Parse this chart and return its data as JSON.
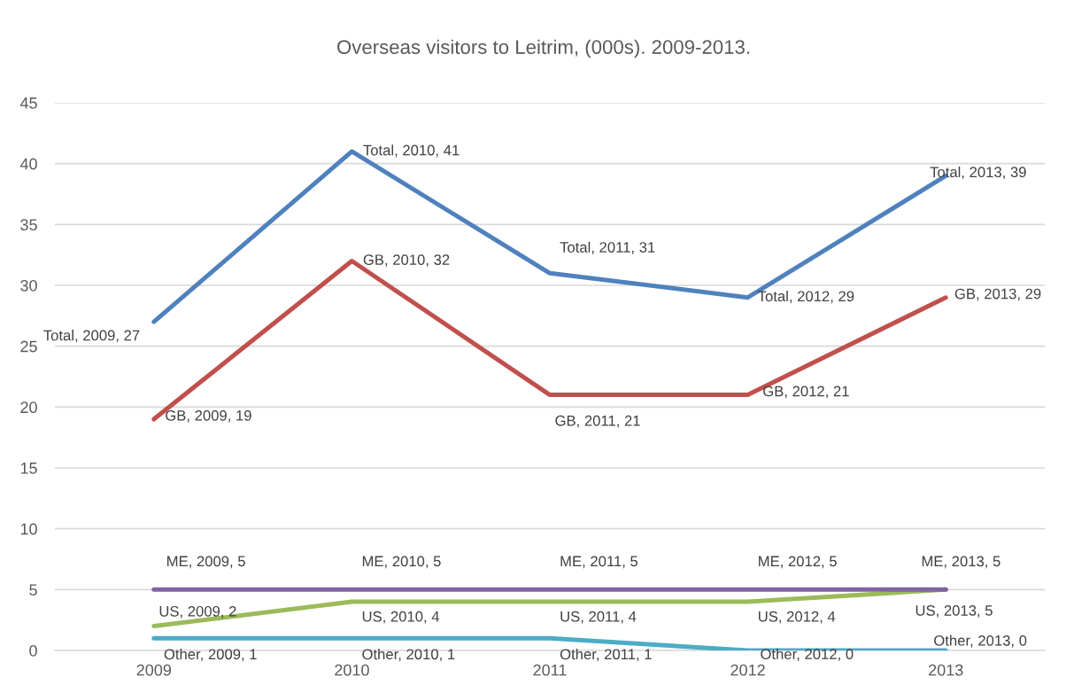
{
  "chart_data": {
    "type": "line",
    "title": "Overseas visitors to Leitrim, (000s). 2009-2013.",
    "categories": [
      "2009",
      "2010",
      "2011",
      "2012",
      "2013"
    ],
    "series": [
      {
        "color": "#4f81bd",
        "values": [
          27,
          41,
          31,
          29,
          39
        ],
        "value_labels": [
          "Total, 2009, 27",
          "Total, 2010, 41",
          "Total, 2011, 31",
          "Total, 2012, 29",
          "Total, 2013, 39"
        ]
      },
      {
        "color": "#c0504d",
        "values": [
          19,
          32,
          21,
          21,
          29
        ],
        "value_labels": [
          "GB, 2009, 19",
          "GB, 2010, 32",
          "GB, 2011, 21",
          "GB, 2012, 21",
          "GB, 2013, 29"
        ]
      },
      {
        "color": "#9bbb59",
        "values": [
          2,
          4,
          4,
          4,
          5
        ],
        "value_labels": [
          "US, 2009, 2",
          "US, 2010, 4",
          "US, 2011, 4",
          "US, 2012, 4",
          "US, 2013, 5"
        ]
      },
      {
        "color": "#8064a2",
        "values": [
          5,
          5,
          5,
          5,
          5
        ],
        "value_labels": [
          "ME, 2009, 5",
          "ME, 2010, 5",
          "ME, 2011, 5",
          "ME, 2012, 5",
          "ME, 2013, 5"
        ]
      },
      {
        "color": "#4bacc6",
        "values": [
          1,
          1,
          1,
          0,
          0
        ],
        "value_labels": [
          "Other, 2009, 1",
          "Other, 2010, 1",
          "Other, 2011, 1",
          "Other, 2012, 0",
          "Other, 2013, 0"
        ]
      }
    ],
    "ylim": [
      0,
      45
    ],
    "yticks": [
      0,
      5,
      10,
      15,
      20,
      25,
      30,
      35,
      40,
      45
    ],
    "grid": "y",
    "marker": "none",
    "line_style": "solid"
  }
}
